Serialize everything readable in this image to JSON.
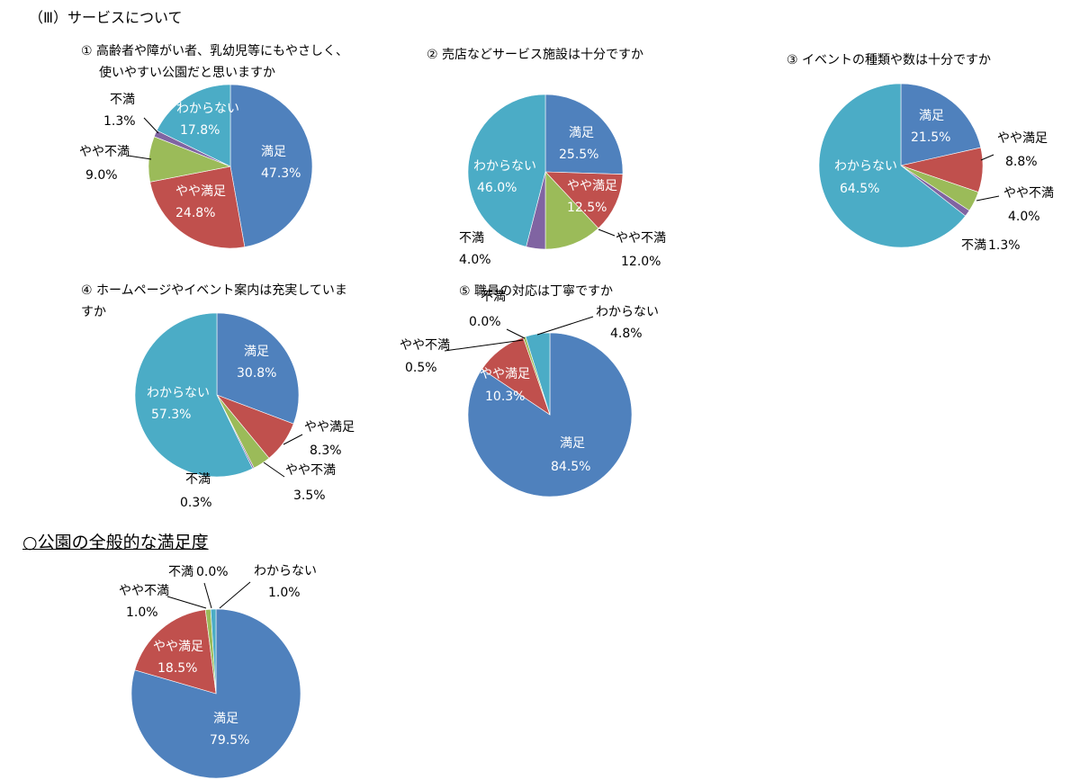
{
  "section_title": "（Ⅲ）サービスについて",
  "overall_heading": "○公園の全般的な満足度",
  "chart_data": [
    {
      "id": "q1",
      "type": "pie",
      "title_lines": [
        "① 高齢者や障がい者、乳幼児等にもやさしく、",
        "使いやすい公園だと思いますか"
      ],
      "slices": [
        {
          "name": "満足",
          "value": 47.3,
          "label": "47.3%",
          "color": "#4f81bd"
        },
        {
          "name": "やや満足",
          "value": 24.8,
          "label": "24.8%",
          "color": "#c0504d"
        },
        {
          "name": "やや不満",
          "value": 9.0,
          "label": "9.0%",
          "color": "#9bbb59"
        },
        {
          "name": "不満",
          "value": 1.3,
          "label": "1.3%",
          "color": "#8064a2"
        },
        {
          "name": "わからない",
          "value": 17.8,
          "label": "17.8%",
          "color": "#4bacc6"
        }
      ]
    },
    {
      "id": "q2",
      "type": "pie",
      "title_lines": [
        "② 売店などサービス施設は十分ですか"
      ],
      "slices": [
        {
          "name": "満足",
          "value": 25.5,
          "label": "25.5%",
          "color": "#4f81bd"
        },
        {
          "name": "やや満足",
          "value": 12.5,
          "label": "12.5%",
          "color": "#c0504d"
        },
        {
          "name": "やや不満",
          "value": 12.0,
          "label": "12.0%",
          "color": "#9bbb59"
        },
        {
          "name": "不満",
          "value": 4.0,
          "label": "4.0%",
          "color": "#8064a2"
        },
        {
          "name": "わからない",
          "value": 46.0,
          "label": "46.0%",
          "color": "#4bacc6"
        }
      ]
    },
    {
      "id": "q3",
      "type": "pie",
      "title_lines": [
        "③ イベントの種類や数は十分ですか"
      ],
      "slices": [
        {
          "name": "満足",
          "value": 21.5,
          "label": "21.5%",
          "color": "#4f81bd"
        },
        {
          "name": "やや満足",
          "value": 8.8,
          "label": "8.8%",
          "color": "#c0504d"
        },
        {
          "name": "やや不満",
          "value": 4.0,
          "label": "4.0%",
          "color": "#9bbb59"
        },
        {
          "name": "不満",
          "value": 1.3,
          "label": "1.3%",
          "color": "#8064a2"
        },
        {
          "name": "わからない",
          "value": 64.5,
          "label": "64.5%",
          "color": "#4bacc6"
        }
      ]
    },
    {
      "id": "q4",
      "type": "pie",
      "title_lines": [
        "④ ホームページやイベント案内は充実していま",
        "すか"
      ],
      "slices": [
        {
          "name": "満足",
          "value": 30.8,
          "label": "30.8%",
          "color": "#4f81bd"
        },
        {
          "name": "やや満足",
          "value": 8.3,
          "label": "8.3%",
          "color": "#c0504d"
        },
        {
          "name": "やや不満",
          "value": 3.5,
          "label": "3.5%",
          "color": "#9bbb59"
        },
        {
          "name": "不満",
          "value": 0.3,
          "label": "0.3%",
          "color": "#8064a2"
        },
        {
          "name": "わからない",
          "value": 57.3,
          "label": "57.3%",
          "color": "#4bacc6"
        }
      ]
    },
    {
      "id": "q5",
      "type": "pie",
      "title_lines": [
        "⑤ 職員の対応は丁寧ですか"
      ],
      "slices": [
        {
          "name": "満足",
          "value": 84.5,
          "label": "84.5%",
          "color": "#4f81bd"
        },
        {
          "name": "やや満足",
          "value": 10.3,
          "label": "10.3%",
          "color": "#c0504d"
        },
        {
          "name": "やや不満",
          "value": 0.5,
          "label": "0.5%",
          "color": "#9bbb59"
        },
        {
          "name": "不満",
          "value": 0.0,
          "label": "0.0%",
          "color": "#8064a2"
        },
        {
          "name": "わからない",
          "value": 4.8,
          "label": "4.8%",
          "color": "#4bacc6"
        }
      ]
    },
    {
      "id": "overall",
      "type": "pie",
      "title_lines": [],
      "slices": [
        {
          "name": "満足",
          "value": 79.5,
          "label": "79.5%",
          "color": "#4f81bd"
        },
        {
          "name": "やや満足",
          "value": 18.5,
          "label": "18.5%",
          "color": "#c0504d"
        },
        {
          "name": "やや不満",
          "value": 1.0,
          "label": "1.0%",
          "color": "#9bbb59"
        },
        {
          "name": "不満",
          "value": 0.0,
          "label": "0.0%",
          "color": "#8064a2"
        },
        {
          "name": "わからない",
          "value": 1.0,
          "label": "1.0%",
          "color": "#4bacc6"
        }
      ]
    }
  ]
}
